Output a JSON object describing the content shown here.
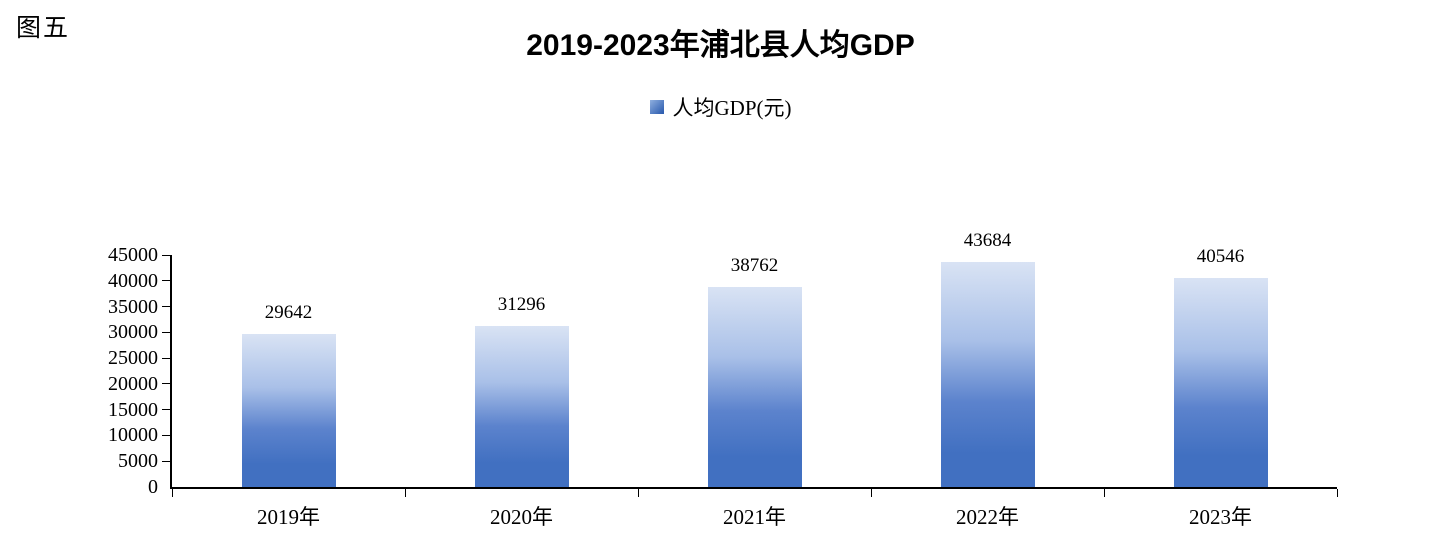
{
  "figure_label": "图五",
  "chart_data": {
    "type": "bar",
    "title": "2019-2023年浦北县人均GDP",
    "legend_label": "人均GDP(元)",
    "legend_position": "top-center",
    "categories": [
      "2019年",
      "2020年",
      "2021年",
      "2022年",
      "2023年"
    ],
    "series": [
      {
        "name": "人均GDP(元)",
        "values": [
          29642,
          31296,
          38762,
          43684,
          40546
        ]
      }
    ],
    "xlabel": "",
    "ylabel": "",
    "ylim": [
      0,
      45000
    ],
    "yticks": [
      0,
      5000,
      10000,
      15000,
      20000,
      25000,
      30000,
      35000,
      40000,
      45000
    ],
    "grid": false,
    "data_labels": true,
    "colors": {
      "bar_gradient_top": "#d9e3f4",
      "bar_gradient_mid1": "#a9c0e8",
      "bar_gradient_mid2": "#5c83cd",
      "bar_gradient_bottom": "#4170c1",
      "legend_marker_light": "#8fafdf",
      "legend_marker_dark": "#3160b1",
      "axis": "#000000",
      "text": "#000000"
    }
  }
}
